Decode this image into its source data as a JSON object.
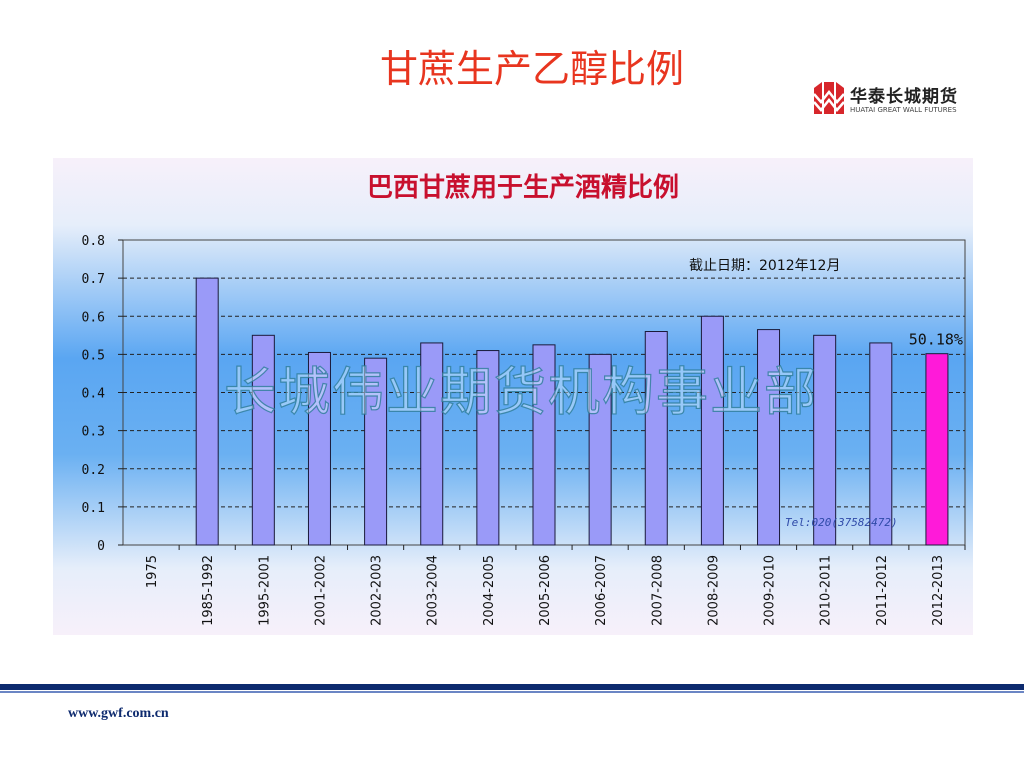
{
  "slide": {
    "title": "甘蔗生产乙醇比例",
    "footer_url": "www.gwf.com.cn"
  },
  "logo": {
    "name_cn": "华泰长城期货",
    "name_en": "HUATAI GREAT WALL FUTURES",
    "color": "#d7262b"
  },
  "watermark": "长城伟业期货机构事业部",
  "chart_data": {
    "type": "bar",
    "title": "巴西甘蔗用于生产酒精比例",
    "annotation_date": "截止日期：2012年12月",
    "annotation_tel": "Tel:020(37582472)",
    "highlight_label": "50.18%",
    "categories": [
      "1975",
      "1985-1992",
      "1995-2001",
      "2001-2002",
      "2002-2003",
      "2003-2004",
      "2004-2005",
      "2005-2006",
      "2006-2007",
      "2007-2008",
      "2008-2009",
      "2009-2010",
      "2010-2011",
      "2011-2012",
      "2012-2013"
    ],
    "values": [
      0,
      0.7,
      0.55,
      0.505,
      0.49,
      0.53,
      0.51,
      0.525,
      0.5,
      0.56,
      0.6,
      0.565,
      0.55,
      0.53,
      0.5018
    ],
    "yticks": [
      "0",
      "0.1",
      "0.2",
      "0.3",
      "0.4",
      "0.5",
      "0.6",
      "0.7",
      "0.8"
    ],
    "ylim": [
      0,
      0.8
    ],
    "grid": true,
    "bar_color": "#9a9af8",
    "highlight_color": "#ff1ad9",
    "highlight_index": 14
  }
}
